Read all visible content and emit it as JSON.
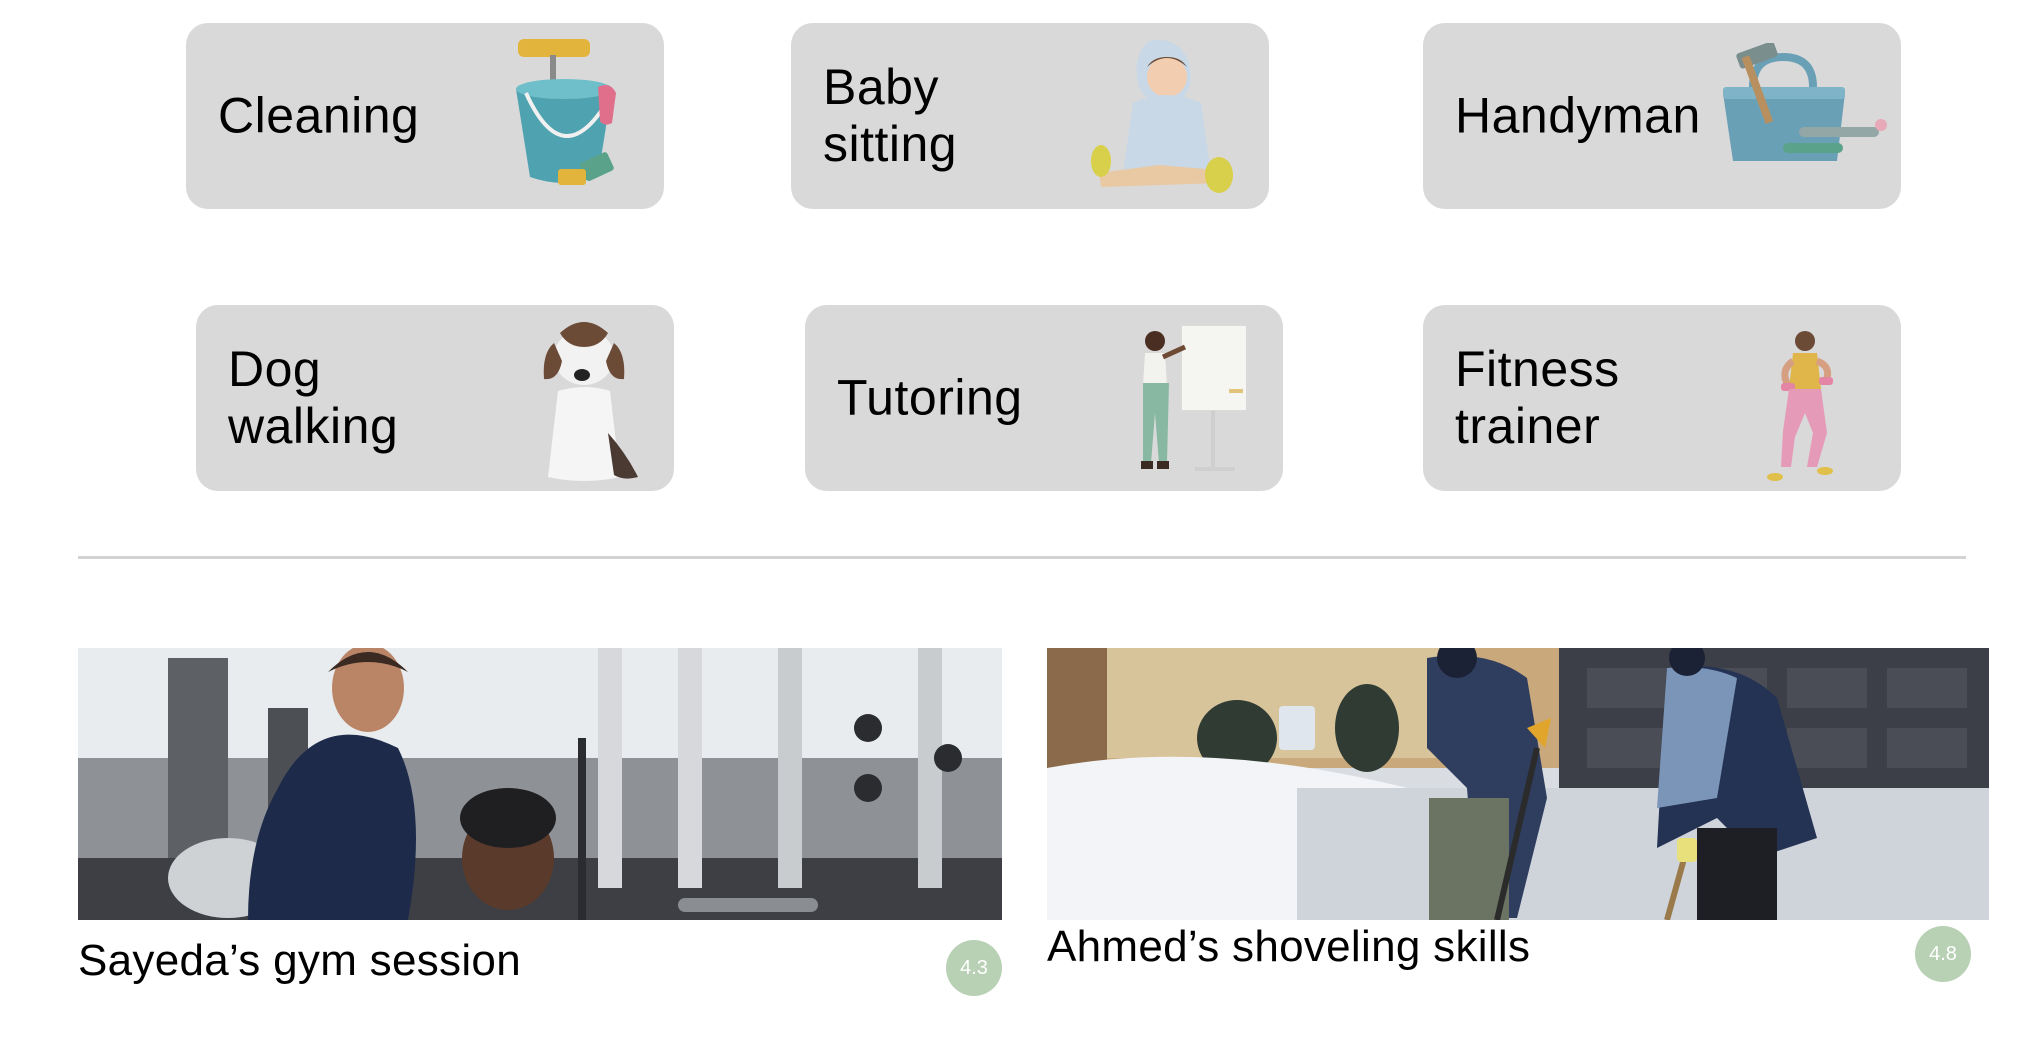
{
  "categories": [
    {
      "label": "Cleaning",
      "icon": "cleaning-bucket-icon"
    },
    {
      "label": "Baby\nsitting",
      "icon": "baby-sitting-icon"
    },
    {
      "label": "Handyman",
      "icon": "toolbox-icon"
    },
    {
      "label": "Dog\nwalking",
      "icon": "dog-icon"
    },
    {
      "label": "Tutoring",
      "icon": "whiteboard-teacher-icon"
    },
    {
      "label": "Fitness\ntrainer",
      "icon": "fitness-trainer-icon"
    }
  ],
  "sessions": [
    {
      "title": "Sayeda’s gym session",
      "rating": "4.3"
    },
    {
      "title": "Ahmed’s shoveling skills",
      "rating": "4.8"
    }
  ],
  "colors": {
    "card_bg": "#d9d9d9",
    "divider": "#d3d3d3",
    "rating_bg": "#b8d1b4"
  }
}
